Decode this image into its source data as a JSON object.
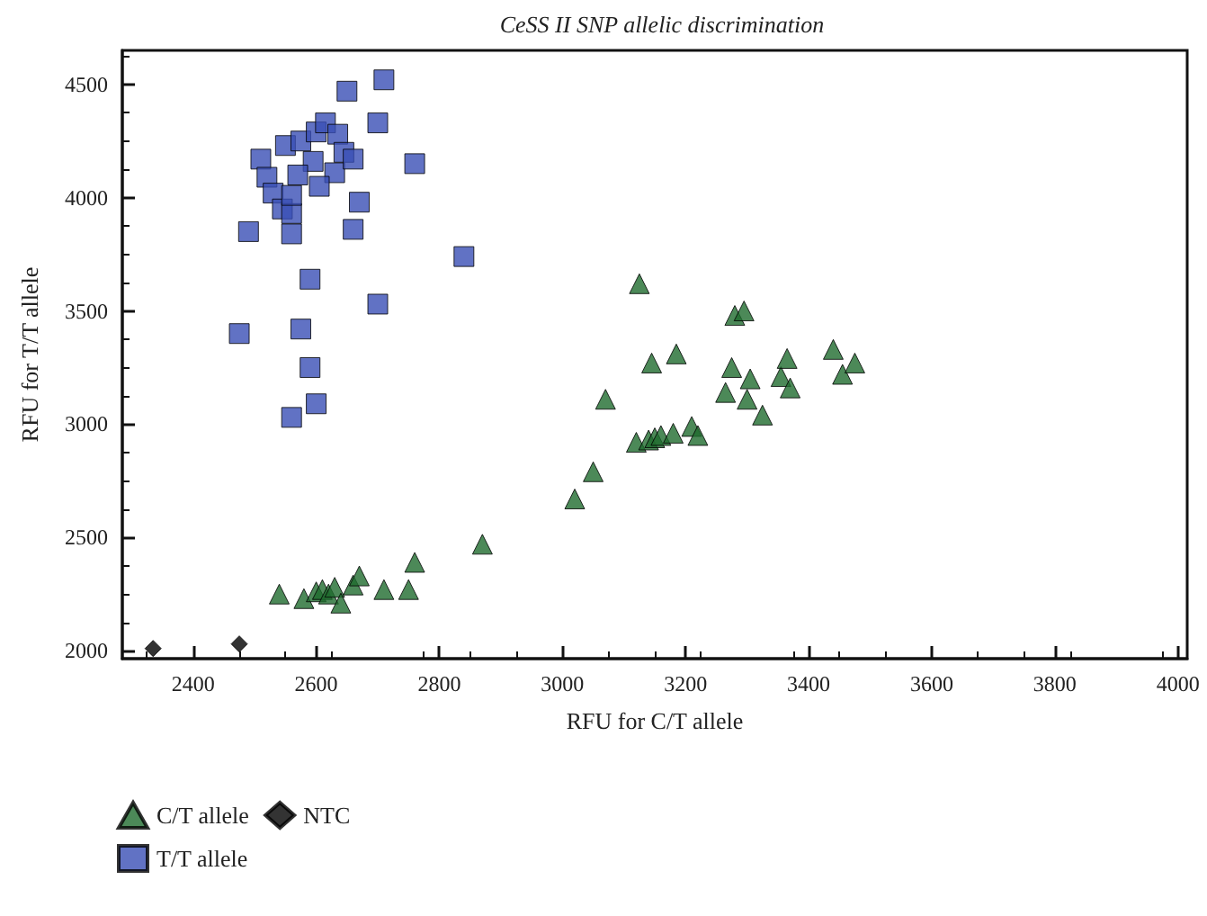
{
  "chart_data": {
    "type": "scatter",
    "title": "CeSS II SNP allelic discrimination",
    "xlabel": "RFU for C/T allele",
    "ylabel": "RFU for T/T allele",
    "xlim": [
      2285,
      4015
    ],
    "xticks": [
      2400,
      2600,
      2800,
      3000,
      3200,
      3400,
      3600,
      3800,
      4000
    ],
    "ylim": [
      1965,
      4650
    ],
    "yticks": [
      2000,
      2500,
      3000,
      3500,
      4000,
      4500
    ],
    "grid": false,
    "legend": "bottom left",
    "series": [
      {
        "name": "C/T allele",
        "color": "#1f6b2e",
        "marker": "triangle",
        "x": [
          2540,
          2580,
          2600,
          2610,
          2620,
          2630,
          2640,
          2660,
          2670,
          2710,
          2750,
          2760,
          2870,
          3020,
          3050,
          3070,
          3125,
          3120,
          3140,
          3150,
          3145,
          3160,
          3180,
          3185,
          3210,
          3220,
          3265,
          3275,
          3280,
          3295,
          3300,
          3305,
          3325,
          3355,
          3365,
          3370,
          3440,
          3455,
          3475
        ],
        "values": [
          2250,
          2230,
          2260,
          2270,
          2250,
          2280,
          2210,
          2290,
          2330,
          2270,
          2270,
          2390,
          2470,
          2670,
          2790,
          3110,
          3620,
          2920,
          2930,
          2940,
          3270,
          2950,
          2960,
          3310,
          2990,
          2950,
          3140,
          3250,
          3480,
          3500,
          3110,
          3200,
          3040,
          3210,
          3290,
          3160,
          3330,
          3220,
          3270
        ]
      },
      {
        "name": "T/T allele",
        "color": "#3a4fb5",
        "marker": "square",
        "x": [
          2475,
          2490,
          2560,
          2575,
          2590,
          2590,
          2600,
          2700,
          2840,
          2760,
          2710,
          2650,
          2700,
          2670,
          2660,
          2560,
          2510,
          2520,
          2530,
          2545,
          2560,
          2550,
          2575,
          2600,
          2615,
          2635,
          2645,
          2630,
          2660,
          2595,
          2570,
          2605,
          2560
        ],
        "values": [
          3400,
          3850,
          3030,
          3420,
          3250,
          3640,
          3090,
          3530,
          3740,
          4150,
          4520,
          4470,
          4330,
          3980,
          3860,
          3840,
          4170,
          4090,
          4020,
          3950,
          3930,
          4230,
          4250,
          4290,
          4330,
          4280,
          4200,
          4110,
          4170,
          4160,
          4100,
          4050,
          4010
        ]
      },
      {
        "name": "NTC",
        "color": "#000000",
        "marker": "diamond",
        "x": [
          2335,
          2475
        ],
        "values": [
          2010,
          2030
        ]
      }
    ]
  }
}
